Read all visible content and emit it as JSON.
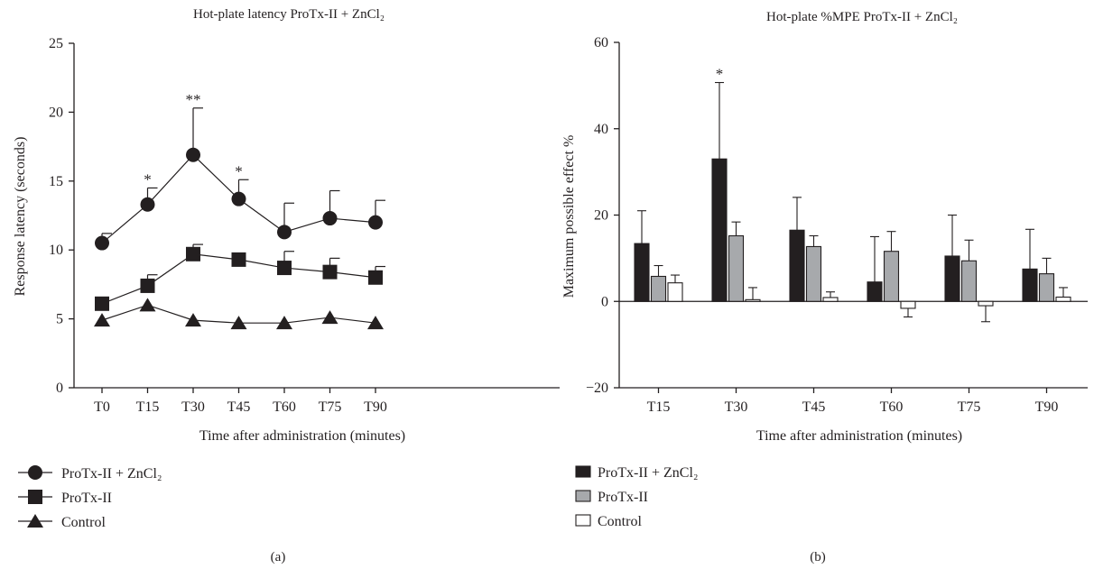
{
  "charts": [
    {
      "title": "Hot-plate latency ProTx-II + ZnCl₂",
      "panel_label": "(a)",
      "xlabel": "Time after administration (minutes)",
      "ylabel": "Response latency (seconds)"
    },
    {
      "title": "Hot-plate %MPE ProTx-II + ZnCl₂",
      "panel_label": "(b)",
      "xlabel": "Time after administration (minutes)",
      "ylabel": "Maximum possible effect %"
    }
  ],
  "chart_data": [
    {
      "type": "line",
      "title": "Hot-plate latency ProTx-II + ZnCl₂",
      "xlabel": "Time after administration (minutes)",
      "ylabel": "Response latency (seconds)",
      "categories": [
        "T0",
        "T15",
        "T30",
        "T45",
        "T60",
        "T75",
        "T90"
      ],
      "ylim": [
        0,
        25
      ],
      "yticks": [
        0,
        5,
        10,
        15,
        20,
        25
      ],
      "grid": false,
      "legend": "bottom-left",
      "series": [
        {
          "name": "ProTx-II + ZnCl₂",
          "marker": "circle",
          "values": [
            10.5,
            13.3,
            16.9,
            13.7,
            11.3,
            12.3,
            12.0
          ],
          "errors": [
            0.7,
            1.2,
            3.4,
            1.4,
            2.1,
            2.0,
            1.6
          ]
        },
        {
          "name": "ProTx-II",
          "marker": "square",
          "values": [
            6.1,
            7.4,
            9.7,
            9.3,
            8.7,
            8.4,
            8.0
          ],
          "errors": [
            0.0,
            0.8,
            0.7,
            0.0,
            1.2,
            1.0,
            0.8
          ]
        },
        {
          "name": "Control",
          "marker": "triangle",
          "values": [
            4.9,
            6.0,
            4.9,
            4.7,
            4.7,
            5.1,
            4.7
          ],
          "errors": [
            0,
            0,
            0,
            0,
            0,
            0,
            0
          ]
        }
      ],
      "annotations": [
        {
          "category": "T15",
          "text": "*"
        },
        {
          "category": "T30",
          "text": "**"
        },
        {
          "category": "T45",
          "text": "*"
        }
      ]
    },
    {
      "type": "bar",
      "title": "Hot-plate %MPE ProTx-II + ZnCl₂",
      "xlabel": "Time after administration (minutes)",
      "ylabel": "Maximum possible effect %",
      "categories": [
        "T15",
        "T30",
        "T45",
        "T60",
        "T75",
        "T90"
      ],
      "ylim": [
        -20,
        60
      ],
      "yticks": [
        -20,
        0,
        20,
        40,
        60
      ],
      "grid": false,
      "legend": "bottom-left",
      "series": [
        {
          "name": "ProTx-II + ZnCl₂",
          "color": "#231f20",
          "values": [
            13.4,
            33.0,
            16.5,
            4.5,
            10.5,
            7.5
          ],
          "errors": [
            7.6,
            17.7,
            7.6,
            10.5,
            9.5,
            9.2
          ]
        },
        {
          "name": "ProTx-II",
          "color": "#a7a9ac",
          "values": [
            5.8,
            15.2,
            12.7,
            11.6,
            9.4,
            6.4
          ],
          "errors": [
            2.5,
            3.2,
            2.5,
            4.6,
            4.8,
            3.6
          ]
        },
        {
          "name": "Control",
          "color": "#ffffff",
          "values": [
            4.3,
            0.4,
            0.9,
            -1.6,
            -1.0,
            1.0
          ],
          "errors": [
            1.8,
            2.8,
            1.3,
            2.0,
            3.7,
            2.2
          ]
        }
      ],
      "annotations": [
        {
          "category": "T30",
          "text": "*"
        }
      ]
    }
  ]
}
